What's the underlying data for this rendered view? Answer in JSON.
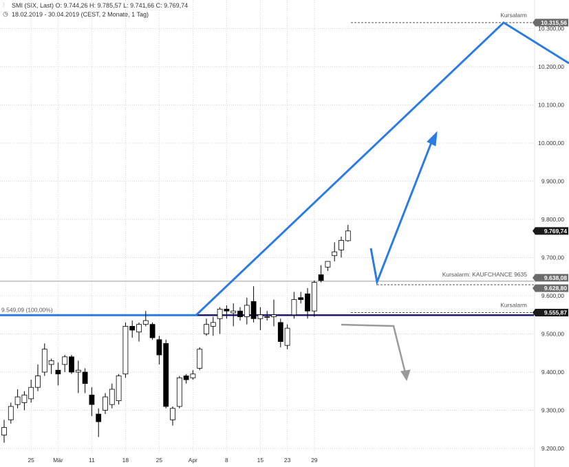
{
  "header": {
    "line1": "SMI (SIX, Last)  O: 9.744,26  H: 9.785,57  L: 9.741,66  C: 9.769,74",
    "line2": "18.02.2019 - 30.04.2019  (CEST, 2 Monate, 1 Tag)",
    "line1_icon": "chart-icon",
    "line2_icon": "clock-icon"
  },
  "colors": {
    "background": "#ffffff",
    "grid": "#d6d6d6",
    "candle_up_fill": "#ffffff",
    "candle_down_fill": "#000000",
    "candle_outline": "#000000",
    "arrow_blue": "#2a7be4",
    "arrow_gray": "#9a9a9a",
    "support_line": "#1a1a6e",
    "tag_dark": "#1a1a1a",
    "tag_gray": "#6b6b6b"
  },
  "chart_data": {
    "type": "candlestick",
    "title": "SMI (SIX, Last)",
    "ylim": [
      9190,
      10330
    ],
    "y_ticks": [
      9200,
      9300,
      9400,
      9500,
      9600,
      9700,
      9800,
      9900,
      10000,
      10100,
      10200,
      10300
    ],
    "y_tick_labels": [
      "9.200,00",
      "9.300,00",
      "9.400,00",
      "9.500,00",
      "9.600,00",
      "9.700,00",
      "9.800,00",
      "9.900,00",
      "10.000,00",
      "10.100,00",
      "10.200,00",
      "10.300,00"
    ],
    "x_tick_labels": [
      "25",
      "Mär",
      "11",
      "18",
      "25",
      "Apr",
      "8",
      "15",
      "23",
      "29"
    ],
    "x_tick_index": [
      4,
      8,
      13,
      18,
      23,
      28,
      33,
      38,
      42,
      46
    ],
    "grid": true,
    "candles": [
      {
        "o": 9235,
        "h": 9275,
        "l": 9215,
        "c": 9255
      },
      {
        "o": 9275,
        "h": 9320,
        "l": 9265,
        "c": 9310
      },
      {
        "o": 9315,
        "h": 9355,
        "l": 9305,
        "c": 9335
      },
      {
        "o": 9320,
        "h": 9350,
        "l": 9300,
        "c": 9340
      },
      {
        "o": 9330,
        "h": 9380,
        "l": 9320,
        "c": 9360
      },
      {
        "o": 9360,
        "h": 9420,
        "l": 9350,
        "c": 9390
      },
      {
        "o": 9400,
        "h": 9475,
        "l": 9390,
        "c": 9460
      },
      {
        "o": 9420,
        "h": 9435,
        "l": 9395,
        "c": 9430
      },
      {
        "o": 9405,
        "h": 9425,
        "l": 9365,
        "c": 9395
      },
      {
        "o": 9420,
        "h": 9445,
        "l": 9400,
        "c": 9440
      },
      {
        "o": 9440,
        "h": 9445,
        "l": 9395,
        "c": 9400
      },
      {
        "o": 9400,
        "h": 9430,
        "l": 9345,
        "c": 9405
      },
      {
        "o": 9400,
        "h": 9410,
        "l": 9345,
        "c": 9370
      },
      {
        "o": 9340,
        "h": 9360,
        "l": 9285,
        "c": 9315
      },
      {
        "o": 9290,
        "h": 9305,
        "l": 9230,
        "c": 9270
      },
      {
        "o": 9300,
        "h": 9345,
        "l": 9290,
        "c": 9335
      },
      {
        "o": 9315,
        "h": 9370,
        "l": 9305,
        "c": 9355
      },
      {
        "o": 9325,
        "h": 9395,
        "l": 9315,
        "c": 9390
      },
      {
        "o": 9395,
        "h": 9530,
        "l": 9385,
        "c": 9520
      },
      {
        "o": 9520,
        "h": 9535,
        "l": 9490,
        "c": 9510
      },
      {
        "o": 9505,
        "h": 9530,
        "l": 9480,
        "c": 9525
      },
      {
        "o": 9525,
        "h": 9560,
        "l": 9520,
        "c": 9535
      },
      {
        "o": 9525,
        "h": 9530,
        "l": 9485,
        "c": 9490
      },
      {
        "o": 9485,
        "h": 9495,
        "l": 9420,
        "c": 9445
      },
      {
        "o": 9475,
        "h": 9485,
        "l": 9305,
        "c": 9310
      },
      {
        "o": 9275,
        "h": 9310,
        "l": 9260,
        "c": 9305
      },
      {
        "o": 9310,
        "h": 9390,
        "l": 9305,
        "c": 9385
      },
      {
        "o": 9390,
        "h": 9395,
        "l": 9370,
        "c": 9380
      },
      {
        "o": 9385,
        "h": 9405,
        "l": 9380,
        "c": 9395
      },
      {
        "o": 9410,
        "h": 9465,
        "l": 9405,
        "c": 9460
      },
      {
        "o": 9500,
        "h": 9540,
        "l": 9495,
        "c": 9525
      },
      {
        "o": 9520,
        "h": 9545,
        "l": 9495,
        "c": 9530
      },
      {
        "o": 9540,
        "h": 9570,
        "l": 9500,
        "c": 9565
      },
      {
        "o": 9565,
        "h": 9575,
        "l": 9540,
        "c": 9560
      },
      {
        "o": 9555,
        "h": 9580,
        "l": 9520,
        "c": 9560
      },
      {
        "o": 9560,
        "h": 9570,
        "l": 9535,
        "c": 9545
      },
      {
        "o": 9545,
        "h": 9595,
        "l": 9525,
        "c": 9575
      },
      {
        "o": 9585,
        "h": 9625,
        "l": 9530,
        "c": 9540
      },
      {
        "o": 9540,
        "h": 9570,
        "l": 9510,
        "c": 9550
      },
      {
        "o": 9545,
        "h": 9560,
        "l": 9535,
        "c": 9545
      },
      {
        "o": 9545,
        "h": 9590,
        "l": 9520,
        "c": 9550
      },
      {
        "o": 9530,
        "h": 9540,
        "l": 9465,
        "c": 9480
      },
      {
        "o": 9470,
        "h": 9525,
        "l": 9460,
        "c": 9515
      },
      {
        "o": 9550,
        "h": 9610,
        "l": 9540,
        "c": 9590
      },
      {
        "o": 9595,
        "h": 9610,
        "l": 9580,
        "c": 9590
      },
      {
        "o": 9605,
        "h": 9620,
        "l": 9540,
        "c": 9560
      },
      {
        "o": 9560,
        "h": 9640,
        "l": 9545,
        "c": 9635
      },
      {
        "o": 9655,
        "h": 9680,
        "l": 9635,
        "c": 9640
      },
      {
        "o": 9675,
        "h": 9690,
        "l": 9665,
        "c": 9690
      },
      {
        "o": 9705,
        "h": 9740,
        "l": 9690,
        "c": 9715
      },
      {
        "o": 9720,
        "h": 9755,
        "l": 9700,
        "c": 9745
      },
      {
        "o": 9744.26,
        "h": 9785.57,
        "l": 9741.66,
        "c": 9769.74
      }
    ],
    "horizontal_levels": [
      {
        "value": 10315.56,
        "label": "10.315,56",
        "tag_style": "gray"
      },
      {
        "value": 9769.74,
        "label": "9.769,74",
        "tag_style": "dark"
      },
      {
        "value": 9638.08,
        "label": "9.638,08",
        "tag_style": "gray"
      },
      {
        "value": 9628.8,
        "label": "9.628,80",
        "tag_style": "gray"
      },
      {
        "value": 9555.87,
        "label": "9.555,87",
        "tag_style": "dark"
      }
    ],
    "alerts": [
      {
        "label": "Kursalarm",
        "value": 10315.56
      },
      {
        "label": "Kursalarm: KAUFCHANCE 9635",
        "value": 9628.8
      },
      {
        "label": "Kursalarm",
        "value": 9555.87
      }
    ],
    "support_label": "9.549,09 (100,00%)",
    "support_value": 9549.09
  }
}
